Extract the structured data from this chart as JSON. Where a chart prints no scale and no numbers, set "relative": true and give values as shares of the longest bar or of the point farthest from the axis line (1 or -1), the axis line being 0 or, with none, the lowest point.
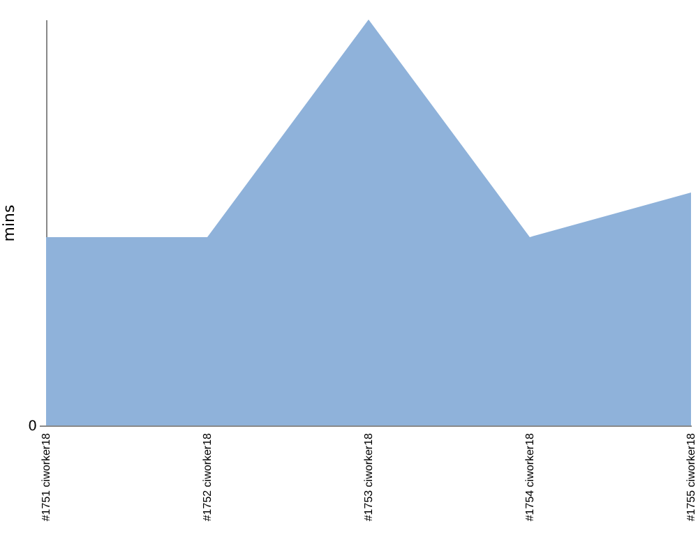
{
  "chart_data": {
    "type": "area",
    "ylabel": "mins",
    "relative": true,
    "annotations": [
      "0"
    ],
    "grid": false,
    "categories": [
      "#1751 ciworker18",
      "#1752 ciworker18",
      "#1753 ciworker18",
      "#1754 ciworker18",
      "#1755 ciworker18"
    ],
    "series": [
      {
        "color": "#8fb2da",
        "values": [
          0.464,
          0.464,
          1,
          0.464,
          0.574
        ]
      }
    ]
  }
}
